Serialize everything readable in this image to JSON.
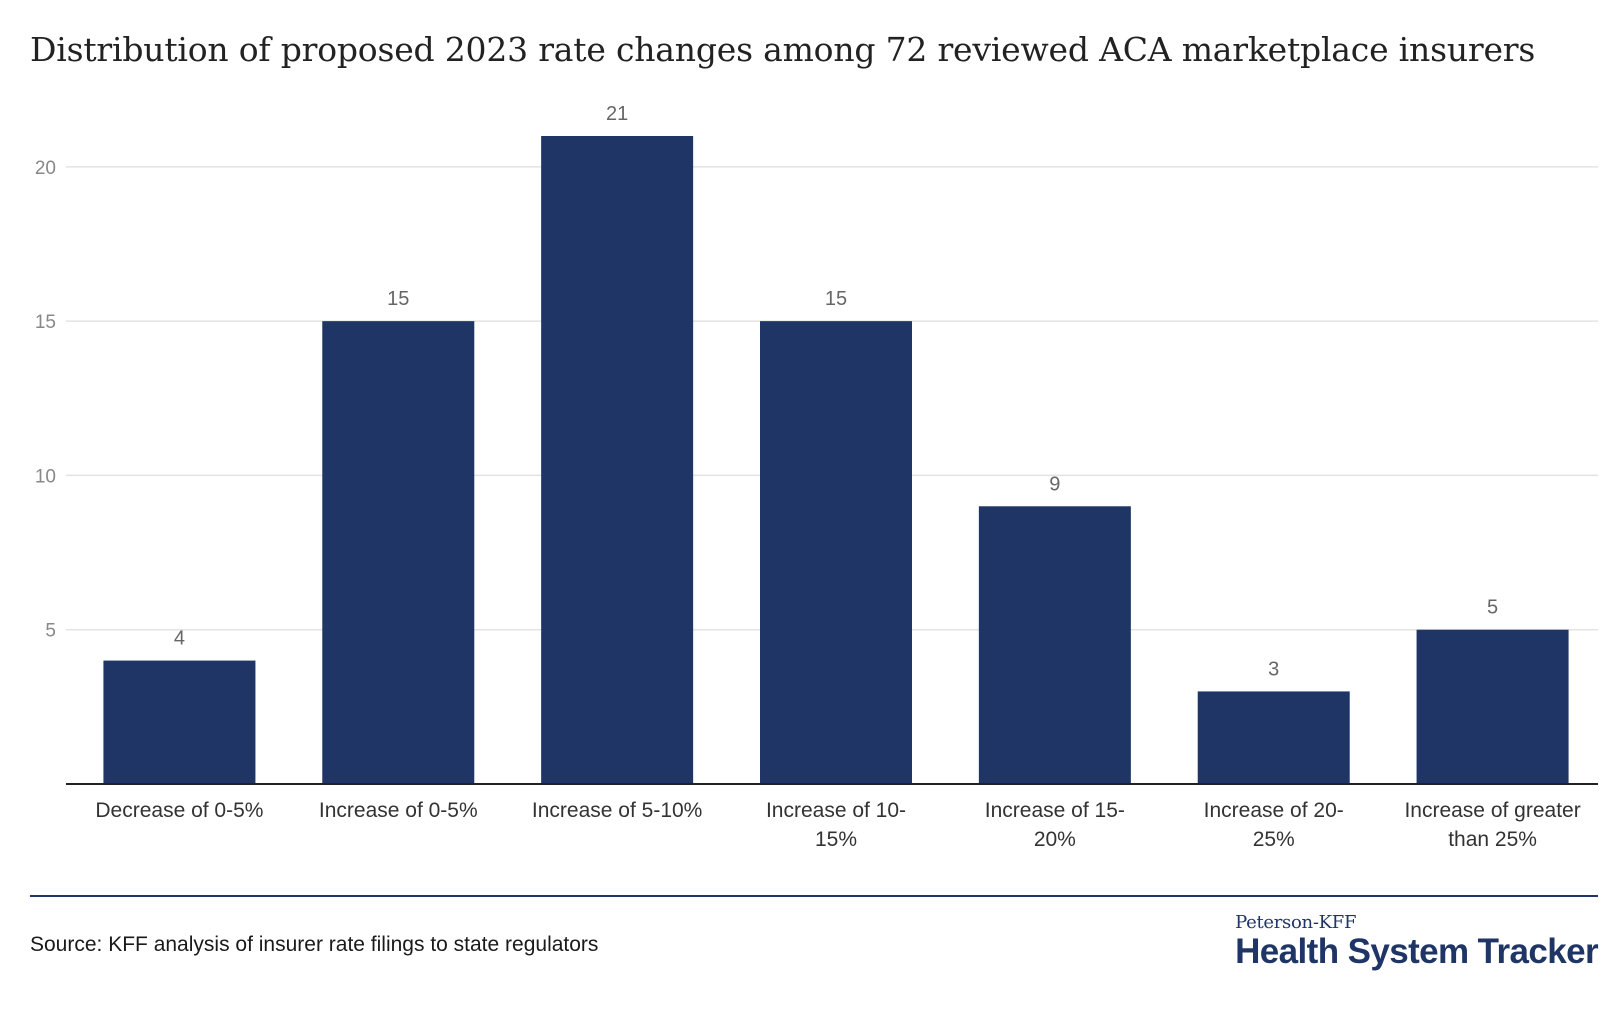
{
  "chart_data": {
    "type": "bar",
    "title": "Distribution of proposed 2023 rate changes among 72 reviewed ACA marketplace insurers",
    "categories": [
      [
        "Decrease of 0-5%"
      ],
      [
        "Increase of 0-5%"
      ],
      [
        "Increase of 5-10%"
      ],
      [
        "Increase of 10-",
        "15%"
      ],
      [
        "Increase of 15-",
        "20%"
      ],
      [
        "Increase of 20-",
        "25%"
      ],
      [
        "Increase of greater",
        "than 25%"
      ]
    ],
    "values": [
      4,
      15,
      21,
      15,
      9,
      3,
      5
    ],
    "ylim": [
      0,
      21
    ],
    "yticks": [
      5,
      10,
      15,
      20
    ],
    "grid": true,
    "data_labels": true,
    "bar_color": "#1f3566"
  },
  "footer": {
    "source": "Source: KFF analysis of insurer rate filings to state regulators",
    "logo_top": "Peterson-KFF",
    "logo_main": "Health System Tracker"
  }
}
